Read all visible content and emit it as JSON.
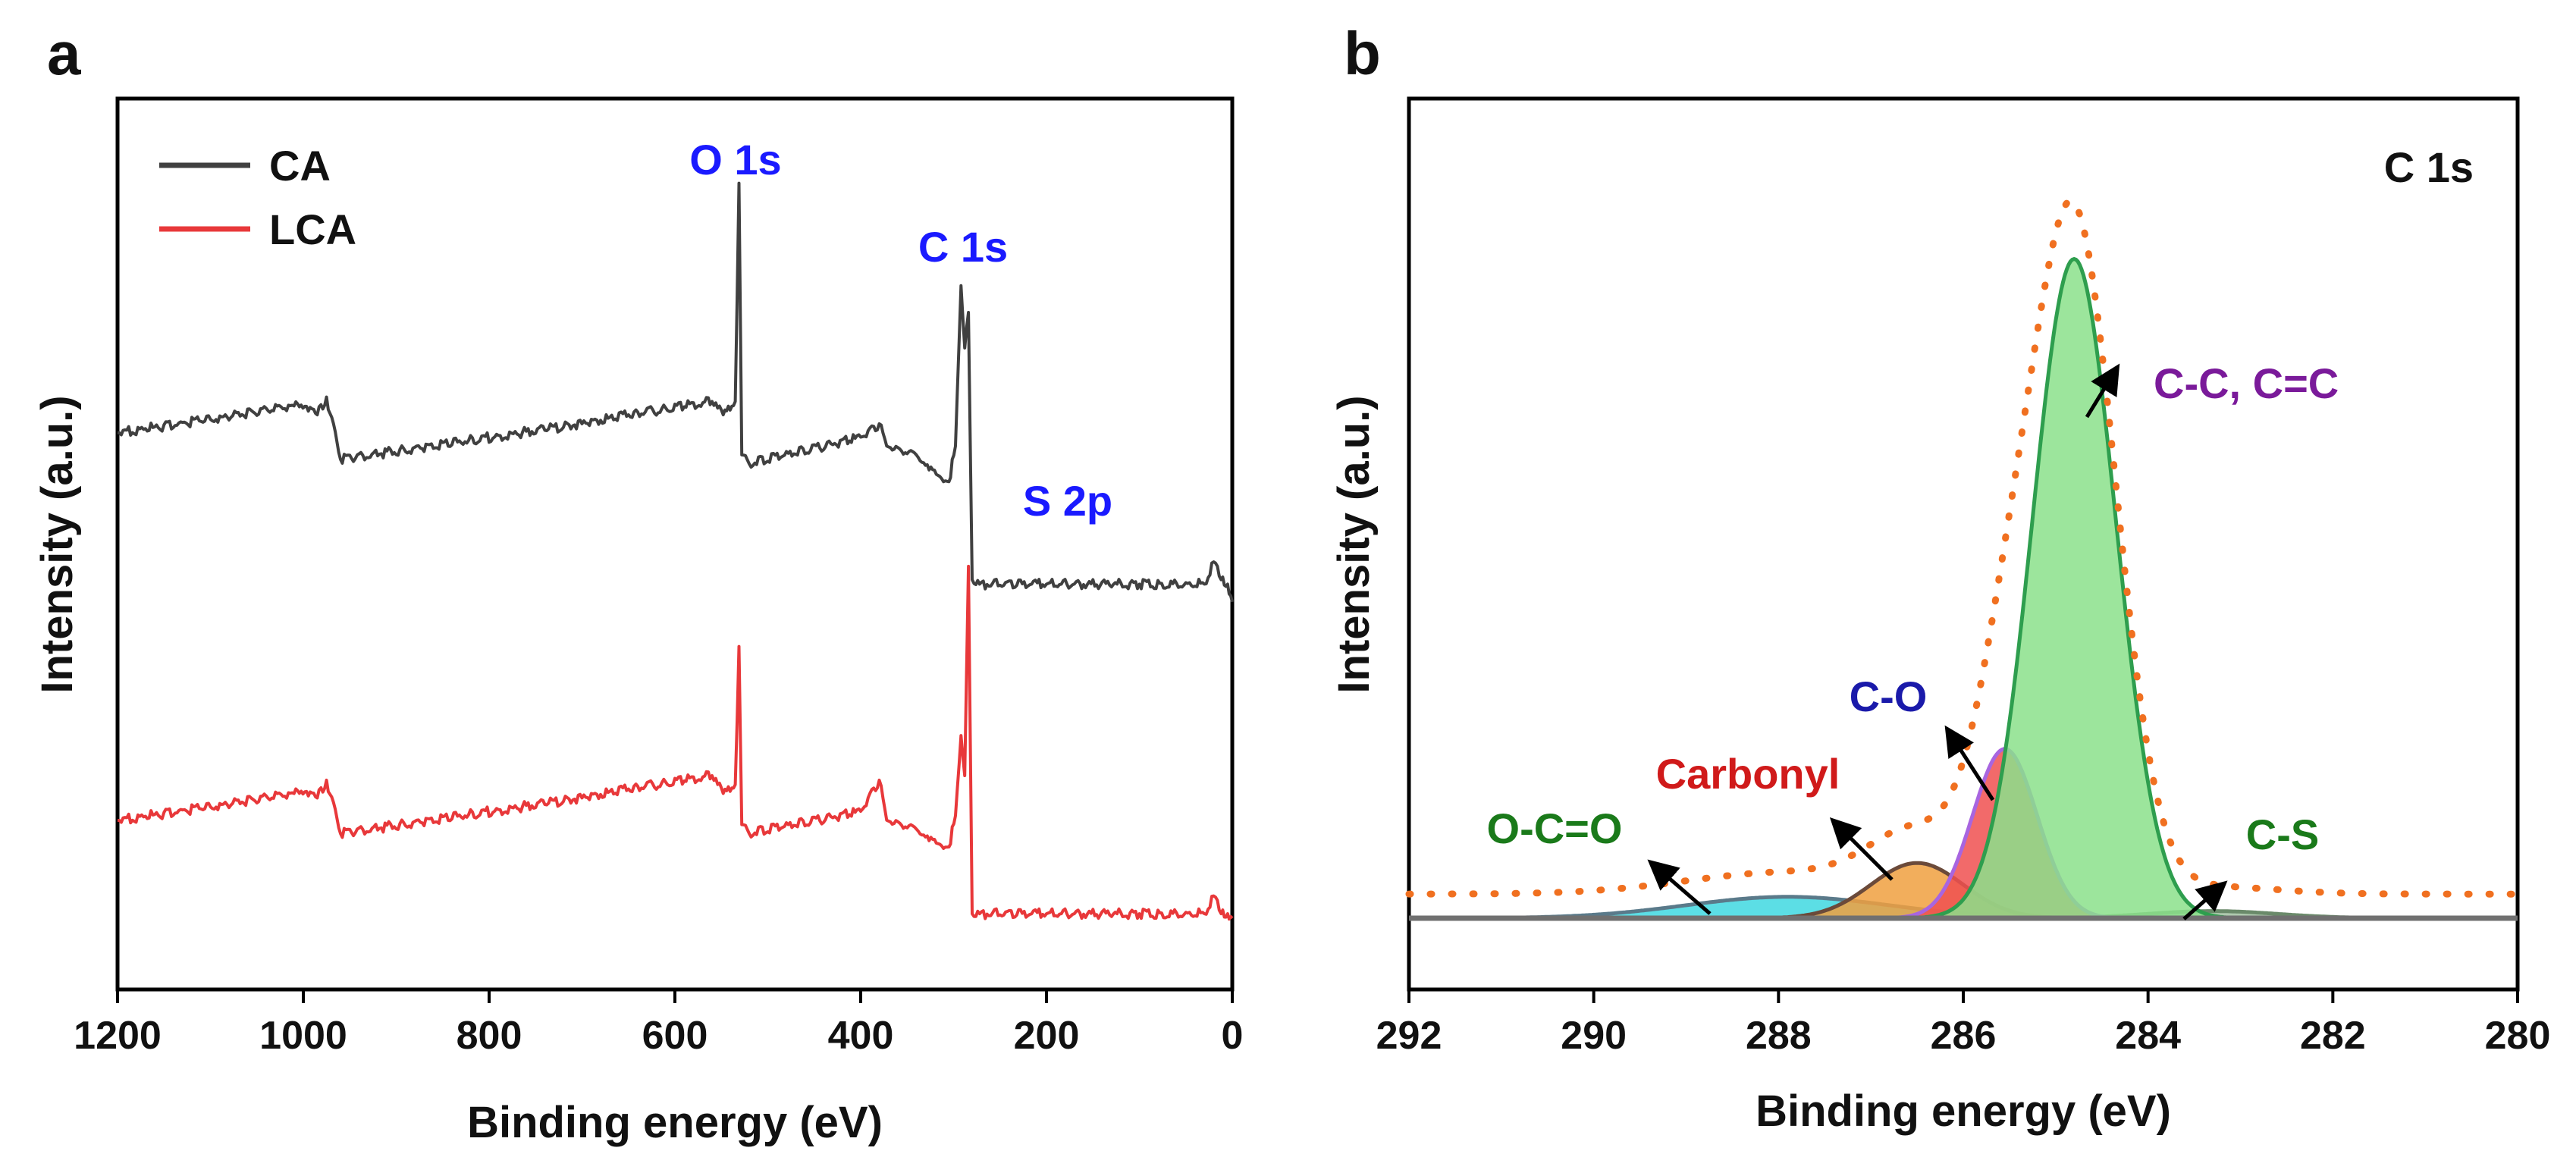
{
  "chart_data": [
    {
      "panel": "a",
      "type": "line",
      "xlabel": "Binding energy (eV)",
      "ylabel": "Intensity (a.u.)",
      "xlim": [
        1200,
        0
      ],
      "xticks": [
        1200,
        1000,
        800,
        600,
        400,
        200,
        0
      ],
      "ylim": [
        0,
        100
      ],
      "legend_position": "top-left",
      "legend": [
        "CA",
        "LCA"
      ],
      "series": [
        {
          "name": "CA",
          "color": "#404040",
          "x": [
            1200,
            1100,
            1010,
            985,
            975,
            960,
            700,
            650,
            560,
            548,
            535,
            531,
            528,
            520,
            400,
            380,
            372,
            340,
            305,
            298,
            292,
            288,
            284,
            280,
            272,
            200,
            100,
            30,
            20,
            12,
            5,
            0
          ],
          "y": [
            62.5,
            64,
            65.5,
            64.5,
            66.5,
            59.5,
            63.5,
            64.5,
            66,
            64.5,
            66,
            90.5,
            60,
            59,
            62,
            63.5,
            61,
            60,
            57,
            61,
            79,
            72,
            76,
            46,
            45.5,
            45.5,
            45.5,
            45.5,
            48,
            46,
            45.5,
            43.5
          ]
        },
        {
          "name": "LCA",
          "color": "#e8383a",
          "x": [
            1200,
            1100,
            1010,
            985,
            975,
            960,
            700,
            650,
            560,
            548,
            535,
            531,
            528,
            520,
            400,
            380,
            372,
            340,
            305,
            298,
            292,
            288,
            284,
            280,
            272,
            200,
            100,
            30,
            20,
            12,
            5,
            0
          ],
          "y": [
            19,
            20.5,
            22,
            21.5,
            23.5,
            17.5,
            21.5,
            22.5,
            24,
            22,
            23,
            38.5,
            18.5,
            17.5,
            20,
            23.5,
            19,
            18,
            16,
            19.5,
            28.5,
            24,
            47.5,
            8.5,
            8.5,
            8.5,
            8.5,
            8.5,
            10.5,
            8.5,
            8.5,
            8
          ]
        }
      ],
      "annotations": [
        "O 1s",
        "C 1s",
        "S 2p"
      ],
      "annotation_color": "#1a1aff"
    },
    {
      "panel": "b",
      "type": "area",
      "title": "C 1s",
      "xlabel": "Binding energy (eV)",
      "ylabel": "Intensity (a.u.)",
      "xlim": [
        292,
        280
      ],
      "xticks": [
        292,
        290,
        288,
        286,
        284,
        282,
        280
      ],
      "ylim": [
        0,
        100
      ],
      "baseline": 8,
      "components": [
        {
          "name": "C-C, C=C",
          "center": 284.8,
          "height": 74,
          "sigma": 0.45,
          "fill": "#8be08b",
          "stroke": "#2e9e4e",
          "label_color": "#7a1a9a"
        },
        {
          "name": "C-O",
          "center": 285.55,
          "height": 19,
          "sigma": 0.35,
          "fill": "#f05050",
          "stroke": "#a865e0",
          "label_color": "#1a1aaa"
        },
        {
          "name": "Carbonyl",
          "center": 286.5,
          "height": 6.2,
          "sigma": 0.5,
          "fill": "#f0a040",
          "stroke": "#6b4a3a",
          "label_color": "#d01a1a"
        },
        {
          "name": "O-C=O",
          "center": 287.9,
          "height": 2.4,
          "sigma": 1.1,
          "fill": "#40d8e0",
          "stroke": "#5a7a8a",
          "label_color": "#1a7a1a"
        },
        {
          "name": "C-S",
          "center": 283.3,
          "height": 0.8,
          "sigma": 0.7,
          "fill": "#a0c0a0",
          "stroke": "#6a8a6a",
          "label_color": "#1a7a1a"
        }
      ],
      "envelope": {
        "name": "fit",
        "style": "dotted",
        "color": "#f07020"
      }
    }
  ],
  "panels": {
    "a": {
      "label": "a"
    },
    "b": {
      "label": "b"
    }
  }
}
